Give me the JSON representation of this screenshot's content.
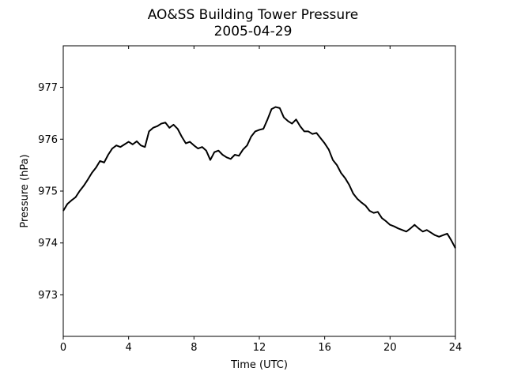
{
  "chart_data": {
    "type": "line",
    "title": "AO&SS Building Tower Pressure",
    "subtitle": "2005-04-29",
    "xlabel": "Time (UTC)",
    "ylabel": "Pressure (hPa)",
    "xlim": [
      0,
      24
    ],
    "ylim": [
      972.2,
      977.8
    ],
    "xticks": [
      0,
      4,
      8,
      12,
      16,
      20,
      24
    ],
    "xtick_labels": [
      "0",
      "4",
      "8",
      "12",
      "16",
      "20",
      "24"
    ],
    "yticks": [
      973,
      974,
      975,
      976,
      977
    ],
    "ytick_labels": [
      "973",
      "974",
      "975",
      "976",
      "977"
    ],
    "grid": false,
    "legend": "none",
    "series": [
      {
        "color": "#000000",
        "x": [
          0,
          0.25,
          0.5,
          0.75,
          1.0,
          1.25,
          1.5,
          1.75,
          2.0,
          2.25,
          2.5,
          2.75,
          3.0,
          3.25,
          3.5,
          3.75,
          4.0,
          4.25,
          4.5,
          4.75,
          5.0,
          5.25,
          5.5,
          5.75,
          6.0,
          6.25,
          6.5,
          6.75,
          7.0,
          7.25,
          7.5,
          7.75,
          8.0,
          8.25,
          8.5,
          8.75,
          9.0,
          9.25,
          9.5,
          9.75,
          10.0,
          10.25,
          10.5,
          10.75,
          11.0,
          11.25,
          11.5,
          11.75,
          12.0,
          12.25,
          12.5,
          12.75,
          13.0,
          13.25,
          13.5,
          13.75,
          14.0,
          14.25,
          14.5,
          14.75,
          15.0,
          15.25,
          15.5,
          15.75,
          16.0,
          16.25,
          16.5,
          16.75,
          17.0,
          17.25,
          17.5,
          17.75,
          18.0,
          18.25,
          18.5,
          18.75,
          19.0,
          19.25,
          19.5,
          19.75,
          20.0,
          20.25,
          20.5,
          20.75,
          21.0,
          21.25,
          21.5,
          21.75,
          22.0,
          22.25,
          22.5,
          22.75,
          23.0,
          23.25,
          23.5,
          23.75,
          24.0
        ],
        "values": [
          974.62,
          974.75,
          974.82,
          974.88,
          975.0,
          975.1,
          975.22,
          975.35,
          975.45,
          975.58,
          975.55,
          975.7,
          975.82,
          975.88,
          975.85,
          975.9,
          975.95,
          975.9,
          975.96,
          975.88,
          975.85,
          976.15,
          976.22,
          976.25,
          976.3,
          976.32,
          976.22,
          976.28,
          976.2,
          976.05,
          975.92,
          975.95,
          975.88,
          975.82,
          975.85,
          975.78,
          975.6,
          975.75,
          975.78,
          975.7,
          975.65,
          975.62,
          975.7,
          975.68,
          975.8,
          975.88,
          976.05,
          976.15,
          976.18,
          976.2,
          976.38,
          976.58,
          976.62,
          976.6,
          976.42,
          976.35,
          976.3,
          976.38,
          976.25,
          976.15,
          976.15,
          976.1,
          976.12,
          976.02,
          975.92,
          975.8,
          975.6,
          975.5,
          975.35,
          975.25,
          975.12,
          974.95,
          974.85,
          974.78,
          974.72,
          974.62,
          974.58,
          974.6,
          974.48,
          974.42,
          974.35,
          974.32,
          974.28,
          974.25,
          974.22,
          974.28,
          974.35,
          974.28,
          974.22,
          974.25,
          974.2,
          974.15,
          974.12,
          974.15,
          974.18,
          974.05,
          973.9
        ]
      }
    ]
  }
}
